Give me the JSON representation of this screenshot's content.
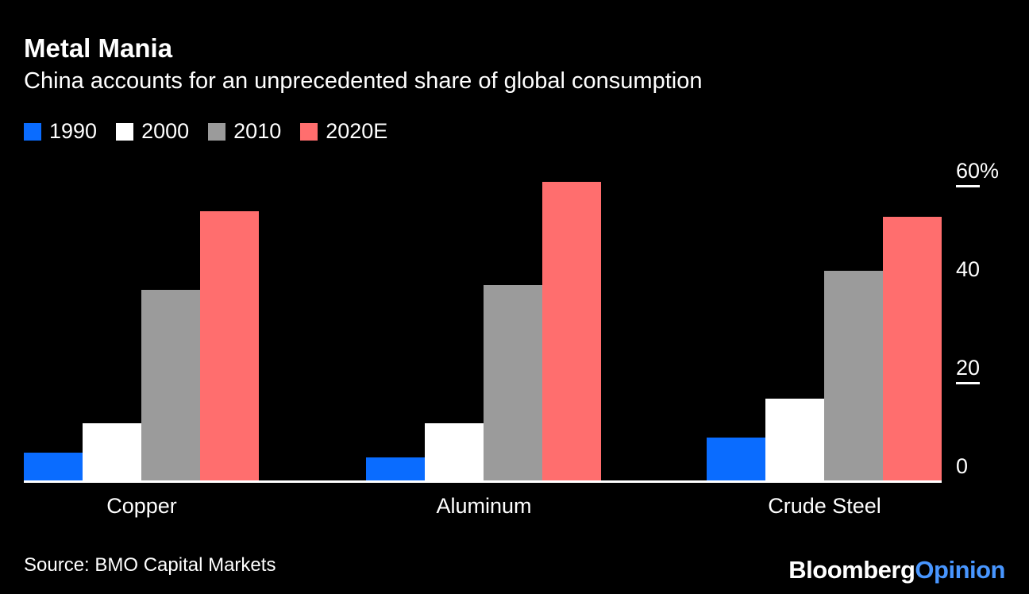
{
  "header": {
    "title": "Metal Mania",
    "subtitle": "China accounts for an unprecedented share of global consumption"
  },
  "chart_data": {
    "type": "bar",
    "title": "Metal Mania",
    "subtitle": "China accounts for an unprecedented share of global consumption",
    "categories": [
      "Copper",
      "Aluminum",
      "Crude Steel"
    ],
    "series": [
      {
        "name": "1990",
        "color": "#0a6cff",
        "values": [
          6,
          5,
          9
        ]
      },
      {
        "name": "2000",
        "color": "#ffffff",
        "values": [
          12,
          12,
          17
        ]
      },
      {
        "name": "2010",
        "color": "#9b9b9b",
        "values": [
          39,
          40,
          43
        ]
      },
      {
        "name": "2020E",
        "color": "#ff6e6e",
        "values": [
          55,
          61,
          54
        ]
      }
    ],
    "unit": "%",
    "ylim": [
      0,
      62
    ],
    "yticks": [
      {
        "label": "60%",
        "value": 60,
        "dash": true
      },
      {
        "label": "40",
        "value": 40,
        "dash": false
      },
      {
        "label": "20",
        "value": 20,
        "dash": true
      },
      {
        "label": "0",
        "value": 0,
        "dash": false
      }
    ],
    "legend_position": "top-left",
    "grid": false
  },
  "footer": {
    "source": "Source: BMO Capital Markets",
    "logo": {
      "brand": "Bloomberg",
      "suffix": "Opinion"
    }
  },
  "colors": {
    "background": "#000000",
    "text": "#ffffff",
    "axis": "#ffffff",
    "logo_suffix": "#4896ff"
  }
}
